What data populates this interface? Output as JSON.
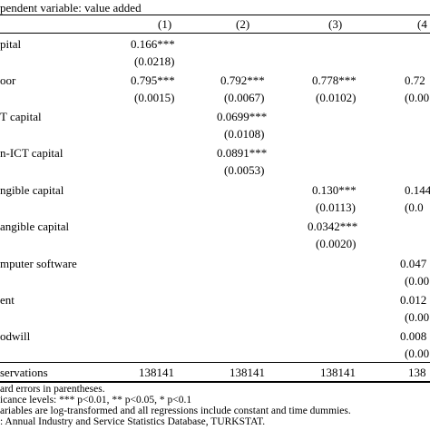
{
  "header": {
    "title": "pendent variable: value added"
  },
  "columns": [
    "(1)",
    "(2)",
    "(3)",
    "(4"
  ],
  "rows": {
    "capital": {
      "label": "pital",
      "c1": "0.166***",
      "c1_se": "(0.0218)"
    },
    "labor": {
      "label": "oor",
      "c1": "0.795***",
      "c2": "0.792***",
      "c3": "0.778***",
      "c4": "0.72",
      "c1_se": "(0.0015)",
      "c2_se": "(0.0067)",
      "c3_se": "(0.0102)",
      "c4_se": "(0.00"
    },
    "ict": {
      "label": "T capital",
      "c2": "0.0699***",
      "c2_se": "(0.0108)"
    },
    "nonict": {
      "label": "n-ICT capital",
      "c2": "0.0891***",
      "c2_se": "(0.0053)"
    },
    "tangible": {
      "label": "ngible capital",
      "c3": "0.130***",
      "c4": "0.144",
      "c3_se": "(0.0113)",
      "c4_se": "(0.0"
    },
    "intangible": {
      "label": "angible capital",
      "c3": "0.0342***",
      "c3_se": "(0.0020)"
    },
    "software": {
      "label": "mputer software",
      "c4": "0.047",
      "c4_se": "(0.00"
    },
    "patent": {
      "label": "ent",
      "c4": "0.012",
      "c4_se": "(0.00"
    },
    "goodwill": {
      "label": "odwill",
      "c4": "0.008",
      "c4_se": "(0.00"
    },
    "observations": {
      "label": "servations",
      "c1": "138141",
      "c2": "138141",
      "c3": "138141",
      "c4": "138"
    }
  },
  "notes": [
    "ard errors in parentheses.",
    "icance levels: *** p<0.01, ** p<0.05, * p<0.1",
    "ariables are log-transformed and all regressions include constant and time dummies.",
    ": Annual Industry and Service Statistics Database, TURKSTAT."
  ]
}
